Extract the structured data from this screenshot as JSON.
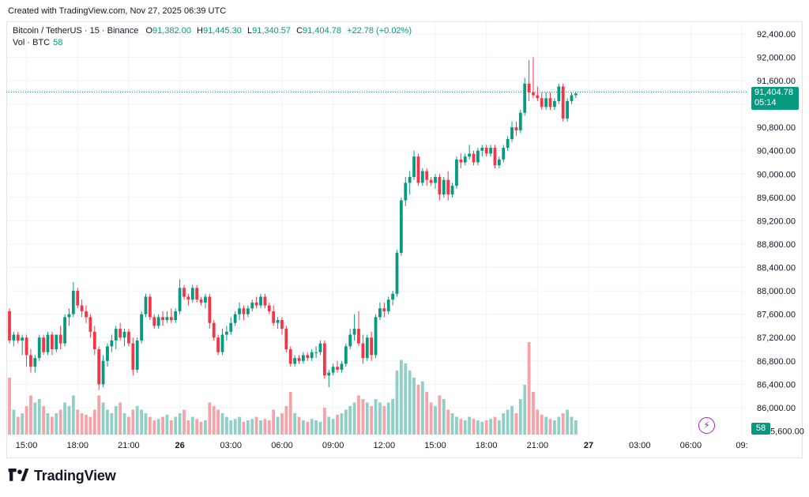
{
  "header": {
    "created_text": "Created with TradingView.com, Nov 27, 2025 06:39 UTC"
  },
  "legend": {
    "symbol": "Bitcoin / TetherUS · 15 · Binance",
    "open_label": "O",
    "open": "91,382.00",
    "high_label": "H",
    "high": "91,445.30",
    "low_label": "L",
    "low": "91,340.57",
    "close_label": "C",
    "close": "91,404.78",
    "change": "+22.78 (+0.02%)",
    "vol_label": "Vol · BTC",
    "vol": "58"
  },
  "price_tag": {
    "price": "91,404.78",
    "countdown": "05:14"
  },
  "vol_tag": "58",
  "footer": {
    "brand": "TradingView"
  },
  "colors": {
    "up": "#089981",
    "down": "#f23645",
    "vol_up": "#8fcfc6",
    "vol_down": "#f5a3a8",
    "grid": "#f0f3fa",
    "axis_text": "#131722"
  },
  "chart_data": {
    "type": "candlestick",
    "symbol": "BTC/USDT",
    "interval": "15",
    "y_ticks": [
      86000,
      86400,
      86800,
      87200,
      87600,
      88000,
      88400,
      88800,
      89200,
      89600,
      90000,
      90400,
      90800,
      91200,
      91600,
      92000,
      92400
    ],
    "y_tick_labels": [
      "86,000.00",
      "86,400.00",
      "86,800.00",
      "87,200.00",
      "87,600.00",
      "88,000.00",
      "88,400.00",
      "88,800.00",
      "89,200.00",
      "89,600.00",
      "90,000.00",
      "90,400.00",
      "90,800.00",
      "91,200.00",
      "91,600.00",
      "92,000.00",
      "92,400.00"
    ],
    "y_label_85600": "5,600.00",
    "ylim": [
      85560,
      92400
    ],
    "x_tick_labels": [
      "15:00",
      "18:00",
      "21:00",
      "26",
      "03:00",
      "06:00",
      "09:00",
      "12:00",
      "15:00",
      "18:00",
      "21:00",
      "27",
      "03:00",
      "06:00",
      "09:"
    ],
    "x_tick_bold": [
      false,
      false,
      false,
      true,
      false,
      false,
      false,
      false,
      false,
      false,
      false,
      true,
      false,
      false,
      false
    ],
    "x_tick_candle_index": [
      4,
      16,
      28,
      40,
      52,
      64,
      76,
      88,
      100,
      112,
      124,
      136,
      148,
      160,
      172
    ],
    "last_price": 91404.78,
    "candles": [
      [
        87650,
        87700,
        87100,
        87150,
        80
      ],
      [
        87150,
        87300,
        87050,
        87250,
        35
      ],
      [
        87250,
        87300,
        87100,
        87150,
        25
      ],
      [
        87150,
        87250,
        86900,
        87200,
        30
      ],
      [
        87200,
        87250,
        86700,
        86900,
        40
      ],
      [
        86900,
        87000,
        86600,
        86700,
        55
      ],
      [
        86700,
        86900,
        86600,
        86850,
        45
      ],
      [
        86850,
        87250,
        86800,
        87200,
        50
      ],
      [
        87200,
        87250,
        86900,
        86950,
        40
      ],
      [
        86950,
        87300,
        86900,
        87250,
        30
      ],
      [
        87250,
        87300,
        86900,
        87000,
        25
      ],
      [
        87000,
        87250,
        86950,
        87250,
        30
      ],
      [
        87250,
        87400,
        87000,
        87100,
        35
      ],
      [
        87100,
        87600,
        87050,
        87550,
        45
      ],
      [
        87550,
        87700,
        87400,
        87600,
        40
      ],
      [
        87600,
        88150,
        87550,
        88000,
        55
      ],
      [
        88000,
        88050,
        87700,
        87750,
        35
      ],
      [
        87750,
        87850,
        87550,
        87650,
        30
      ],
      [
        87650,
        87750,
        87450,
        87550,
        28
      ],
      [
        87550,
        87600,
        87200,
        87300,
        25
      ],
      [
        87300,
        87400,
        86900,
        87000,
        35
      ],
      [
        87000,
        87050,
        86300,
        86400,
        55
      ],
      [
        86400,
        86900,
        86350,
        86800,
        45
      ],
      [
        86800,
        87100,
        86700,
        87050,
        35
      ],
      [
        87050,
        87250,
        86950,
        87150,
        30
      ],
      [
        87150,
        87400,
        87000,
        87350,
        40
      ],
      [
        87350,
        87450,
        87150,
        87200,
        45
      ],
      [
        87200,
        87350,
        87050,
        87300,
        30
      ],
      [
        87300,
        87350,
        87050,
        87100,
        25
      ],
      [
        87100,
        87200,
        86550,
        86650,
        35
      ],
      [
        86650,
        87200,
        86600,
        87150,
        40
      ],
      [
        87150,
        87650,
        87100,
        87600,
        35
      ],
      [
        87600,
        87950,
        87550,
        87900,
        30
      ],
      [
        87900,
        87950,
        87500,
        87550,
        25
      ],
      [
        87550,
        87600,
        87350,
        87400,
        20
      ],
      [
        87400,
        87600,
        87350,
        87550,
        22
      ],
      [
        87550,
        87650,
        87400,
        87500,
        25
      ],
      [
        87500,
        87650,
        87450,
        87550,
        28
      ],
      [
        87550,
        87700,
        87450,
        87500,
        20
      ],
      [
        87500,
        87700,
        87450,
        87650,
        25
      ],
      [
        87650,
        88200,
        87600,
        88050,
        30
      ],
      [
        88050,
        88100,
        87850,
        87900,
        35
      ],
      [
        87900,
        87950,
        87750,
        87850,
        20
      ],
      [
        87850,
        88100,
        87800,
        88050,
        25
      ],
      [
        88050,
        88100,
        87800,
        87850,
        22
      ],
      [
        87850,
        87900,
        87750,
        87800,
        18
      ],
      [
        87800,
        87950,
        87700,
        87900,
        20
      ],
      [
        87900,
        87950,
        87350,
        87450,
        45
      ],
      [
        87450,
        87500,
        87150,
        87200,
        40
      ],
      [
        87200,
        87250,
        86900,
        86950,
        35
      ],
      [
        86950,
        87350,
        86900,
        87250,
        30
      ],
      [
        87250,
        87400,
        87150,
        87300,
        25
      ],
      [
        87300,
        87550,
        87250,
        87450,
        20
      ],
      [
        87450,
        87650,
        87400,
        87600,
        22
      ],
      [
        87600,
        87800,
        87500,
        87700,
        25
      ],
      [
        87700,
        87750,
        87500,
        87600,
        18
      ],
      [
        87600,
        87750,
        87550,
        87700,
        20
      ],
      [
        87700,
        87850,
        87650,
        87800,
        22
      ],
      [
        87800,
        87900,
        87700,
        87750,
        25
      ],
      [
        87750,
        87950,
        87700,
        87900,
        20
      ],
      [
        87900,
        87950,
        87700,
        87750,
        22
      ],
      [
        87750,
        87800,
        87600,
        87650,
        20
      ],
      [
        87650,
        87750,
        87400,
        87450,
        35
      ],
      [
        87450,
        87550,
        87350,
        87500,
        25
      ],
      [
        87500,
        87550,
        87250,
        87350,
        30
      ],
      [
        87350,
        87400,
        86950,
        87000,
        40
      ],
      [
        87000,
        87050,
        86700,
        86750,
        60
      ],
      [
        86750,
        86900,
        86700,
        86850,
        30
      ],
      [
        86850,
        86900,
        86750,
        86800,
        25
      ],
      [
        86800,
        86950,
        86750,
        86900,
        20
      ],
      [
        86900,
        86950,
        86800,
        86850,
        18
      ],
      [
        86850,
        87000,
        86800,
        86950,
        22
      ],
      [
        86950,
        87050,
        86850,
        86950,
        20
      ],
      [
        86950,
        87150,
        86900,
        87100,
        18
      ],
      [
        87100,
        87150,
        86500,
        86550,
        38
      ],
      [
        86550,
        86650,
        86350,
        86600,
        25
      ],
      [
        86600,
        86750,
        86550,
        86700,
        22
      ],
      [
        86700,
        86800,
        86600,
        86650,
        28
      ],
      [
        86650,
        86800,
        86600,
        86750,
        30
      ],
      [
        86750,
        87100,
        86700,
        87050,
        35
      ],
      [
        87050,
        87350,
        87000,
        87250,
        40
      ],
      [
        87250,
        87600,
        87150,
        87350,
        45
      ],
      [
        87350,
        87650,
        87050,
        87100,
        55
      ],
      [
        87100,
        87250,
        86750,
        86850,
        50
      ],
      [
        86850,
        87250,
        86800,
        87200,
        45
      ],
      [
        87200,
        87300,
        86800,
        86900,
        40
      ],
      [
        86900,
        87600,
        86850,
        87550,
        50
      ],
      [
        87550,
        87800,
        87500,
        87700,
        45
      ],
      [
        87700,
        87800,
        87550,
        87650,
        40
      ],
      [
        87650,
        87900,
        87600,
        87850,
        45
      ],
      [
        87850,
        88000,
        87750,
        87950,
        50
      ],
      [
        87950,
        88700,
        87900,
        88650,
        90
      ],
      [
        88650,
        89600,
        88600,
        89550,
        105
      ],
      [
        89550,
        89950,
        89450,
        89850,
        100
      ],
      [
        89850,
        90050,
        89650,
        89950,
        90
      ],
      [
        89950,
        90400,
        89900,
        90300,
        80
      ],
      [
        90300,
        90350,
        89800,
        89850,
        70
      ],
      [
        89850,
        90100,
        89800,
        90050,
        75
      ],
      [
        90050,
        90100,
        89800,
        89900,
        60
      ],
      [
        89900,
        89950,
        89800,
        89850,
        45
      ],
      [
        89850,
        90000,
        89750,
        89950,
        40
      ],
      [
        89950,
        90000,
        89550,
        89650,
        55
      ],
      [
        89650,
        89950,
        89600,
        89900,
        50
      ],
      [
        89900,
        90050,
        89550,
        89650,
        35
      ],
      [
        89650,
        89850,
        89600,
        89800,
        30
      ],
      [
        89800,
        90300,
        89750,
        90250,
        25
      ],
      [
        90250,
        90350,
        90100,
        90200,
        22
      ],
      [
        90200,
        90350,
        90150,
        90300,
        20
      ],
      [
        90300,
        90500,
        90250,
        90350,
        25
      ],
      [
        90350,
        90400,
        90150,
        90200,
        22
      ],
      [
        90200,
        90450,
        90150,
        90400,
        20
      ],
      [
        90400,
        90500,
        90300,
        90450,
        18
      ],
      [
        90450,
        90500,
        90300,
        90350,
        20
      ],
      [
        90350,
        90500,
        90300,
        90450,
        22
      ],
      [
        90450,
        90500,
        90100,
        90150,
        25
      ],
      [
        90150,
        90300,
        90100,
        90250,
        20
      ],
      [
        90250,
        90500,
        90200,
        90450,
        30
      ],
      [
        90450,
        90650,
        90400,
        90600,
        35
      ],
      [
        90600,
        90900,
        90550,
        90800,
        40
      ],
      [
        90800,
        90900,
        90650,
        90750,
        30
      ],
      [
        90750,
        91100,
        90700,
        91050,
        50
      ],
      [
        91050,
        91650,
        91000,
        91550,
        70
      ],
      [
        91550,
        91950,
        91250,
        91400,
        130
      ],
      [
        91400,
        92000,
        91300,
        91350,
        60
      ],
      [
        91350,
        91500,
        91250,
        91300,
        35
      ],
      [
        91300,
        91400,
        91100,
        91150,
        28
      ],
      [
        91150,
        91400,
        91100,
        91300,
        25
      ],
      [
        91300,
        91400,
        91100,
        91150,
        22
      ],
      [
        91150,
        91300,
        91100,
        91250,
        20
      ],
      [
        91250,
        91550,
        91200,
        91500,
        25
      ],
      [
        91500,
        91550,
        90900,
        90950,
        30
      ],
      [
        90950,
        91300,
        90900,
        91250,
        35
      ],
      [
        91250,
        91400,
        91200,
        91350,
        25
      ],
      [
        91350,
        91400,
        91300,
        91380,
        20
      ]
    ]
  }
}
